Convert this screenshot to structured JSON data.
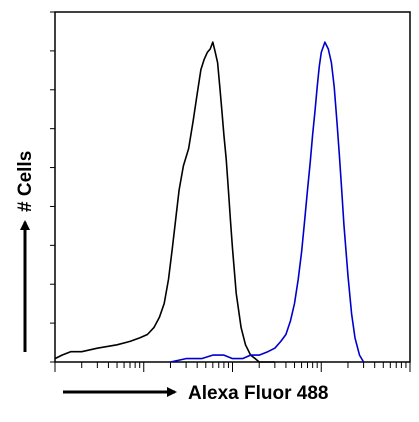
{
  "chart_data": {
    "type": "line",
    "title": "",
    "xlabel": "Alexa Fluor 488",
    "ylabel": "# Cells",
    "x_scale": "log",
    "xlim": [
      1,
      10000
    ],
    "ylim": [
      0,
      100
    ],
    "grid": false,
    "legend": "none",
    "series": [
      {
        "color": "#000000",
        "x": [
          1,
          1.2,
          1.5,
          2,
          3,
          5,
          7,
          9,
          11,
          13,
          15,
          17,
          19,
          21,
          23,
          25,
          28,
          32,
          36,
          40,
          44,
          48,
          52,
          56,
          60,
          64,
          68,
          72,
          76,
          80,
          85,
          90,
          95,
          100,
          110,
          125,
          140,
          160,
          180,
          200,
          250,
          300
        ],
        "y": [
          1,
          2,
          3,
          3,
          4,
          5,
          6,
          7,
          8,
          10,
          13,
          17,
          24,
          33,
          42,
          50,
          57,
          62,
          70,
          78,
          85,
          88,
          90,
          91,
          93,
          90,
          87,
          80,
          73,
          66,
          59,
          50,
          41,
          33,
          20,
          10,
          5,
          2,
          1,
          0,
          0,
          0
        ]
      },
      {
        "color": "#0000cc",
        "x": [
          20,
          30,
          45,
          60,
          80,
          100,
          130,
          160,
          200,
          250,
          300,
          350,
          400,
          450,
          500,
          550,
          600,
          650,
          700,
          750,
          800,
          850,
          900,
          950,
          1000,
          1100,
          1200,
          1300,
          1400,
          1500,
          1600,
          1700,
          1800,
          2000,
          2200,
          2400,
          2700,
          3000
        ],
        "y": [
          0,
          1,
          1,
          2,
          2,
          1,
          1,
          2,
          2,
          3,
          4,
          6,
          8,
          12,
          17,
          24,
          32,
          41,
          50,
          58,
          66,
          73,
          80,
          86,
          90,
          93,
          91,
          87,
          80,
          70,
          60,
          50,
          40,
          25,
          14,
          7,
          2,
          0
        ]
      }
    ]
  }
}
